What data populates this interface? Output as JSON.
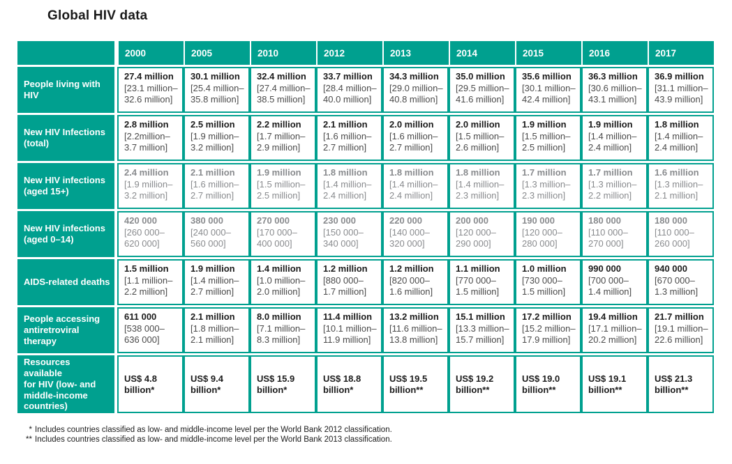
{
  "page": {
    "title": "Global HIV data"
  },
  "colors": {
    "teal": "#00a08f",
    "grey_text": "#898b8e",
    "black_text": "#1b1b1b",
    "white": "#ffffff"
  },
  "table": {
    "years": [
      "2000",
      "2005",
      "2010",
      "2012",
      "2013",
      "2014",
      "2015",
      "2016",
      "2017"
    ],
    "rows": [
      {
        "label": "People living with\nHIV",
        "text_color": "black",
        "cells": [
          {
            "value": "27.4 million",
            "range": "[23.1 million–\n32.6 million]"
          },
          {
            "value": "30.1 million",
            "range": "[25.4 million–\n35.8 million]"
          },
          {
            "value": "32.4 million",
            "range": "[27.4 million–\n38.5 million]"
          },
          {
            "value": "33.7 million",
            "range": "[28.4 million–\n40.0 million]"
          },
          {
            "value": "34.3 million",
            "range": "[29.0 million–\n40.8 million]"
          },
          {
            "value": "35.0 million",
            "range": "[29.5 million–\n41.6 million]"
          },
          {
            "value": "35.6 million",
            "range": "[30.1 million–\n42.4 million]"
          },
          {
            "value": "36.3 million",
            "range": "[30.6 million–\n43.1 million]"
          },
          {
            "value": "36.9 million",
            "range": "[31.1 million–\n43.9 million]"
          }
        ]
      },
      {
        "label": "New HIV Infections\n(total)",
        "text_color": "black",
        "cells": [
          {
            "value": "2.8 million",
            "range": "[2.2million–\n3.7 million]"
          },
          {
            "value": "2.5 million",
            "range": "[1.9 million–\n3.2 million]"
          },
          {
            "value": "2.2 million",
            "range": "[1.7 million–\n2.9 million]"
          },
          {
            "value": "2.1 million",
            "range": "[1.6 million–\n2.7 million]"
          },
          {
            "value": "2.0 million",
            "range": "[1.6 million–\n2.7 million]"
          },
          {
            "value": "2.0 million",
            "range": "[1.5 million–\n2.6 million]"
          },
          {
            "value": "1.9 million",
            "range": "[1.5 million–\n2.5 million]"
          },
          {
            "value": "1.9 million",
            "range": "[1.4 million–\n2.4 million]"
          },
          {
            "value": "1.8 million",
            "range": "[1.4 million–\n2.4 million]"
          }
        ]
      },
      {
        "label": "New HIV infections\n(aged 15+)",
        "text_color": "grey",
        "cells": [
          {
            "value": "2.4 million",
            "range": "[1.9 million–\n3.2 million]"
          },
          {
            "value": "2.1 million",
            "range": "[1.6 million–\n2.7 million]"
          },
          {
            "value": "1.9 million",
            "range": "[1.5 million–\n2.5 million]"
          },
          {
            "value": "1.8 million",
            "range": "[1.4 million–\n2.4 million]"
          },
          {
            "value": "1.8 million",
            "range": "[1.4 million–\n2.4 million]"
          },
          {
            "value": "1.8 million",
            "range": "[1.4 million–\n2.3 million]"
          },
          {
            "value": "1.7 million",
            "range": "[1.3 million–\n2.3 million]"
          },
          {
            "value": "1.7 million",
            "range": "[1.3 million–\n2.2 million]"
          },
          {
            "value": "1.6 million",
            "range": "[1.3 million–\n2.1 million]"
          }
        ]
      },
      {
        "label": "New HIV infections\n(aged 0–14)",
        "text_color": "grey",
        "cells": [
          {
            "value": "420 000",
            "range": "[260 000–\n620 000]"
          },
          {
            "value": "380 000",
            "range": "[240 000–\n560 000]"
          },
          {
            "value": "270 000",
            "range": "[170 000–\n400 000]"
          },
          {
            "value": "230 000",
            "range": "[150 000–\n340 000]"
          },
          {
            "value": "220 000",
            "range": "[140 000–\n320 000]"
          },
          {
            "value": "200 000",
            "range": "[120 000–\n290 000]"
          },
          {
            "value": "190 000",
            "range": "[120 000–\n280 000]"
          },
          {
            "value": "180 000",
            "range": "[110 000–\n270 000]"
          },
          {
            "value": "180 000",
            "range": "[110 000–\n260 000]"
          }
        ]
      },
      {
        "label": "AIDS-related deaths",
        "text_color": "black",
        "cells": [
          {
            "value": "1.5 million",
            "range": "[1.1 million–\n2.2 million]"
          },
          {
            "value": "1.9 million",
            "range": "[1.4 million–\n2.7 million]"
          },
          {
            "value": "1.4 million",
            "range": "[1.0 million–\n2.0 million]"
          },
          {
            "value": "1.2 million",
            "range": "[880 000–\n1.7 million]"
          },
          {
            "value": "1.2 million",
            "range": "[820 000–\n1.6 million]"
          },
          {
            "value": "1.1 million",
            "range": "[770 000–\n1.5 million]"
          },
          {
            "value": "1.0 million",
            "range": "[730 000–\n1.5 million]"
          },
          {
            "value": "990 000",
            "range": "[700 000–\n1.4 million]"
          },
          {
            "value": "940 000",
            "range": "[670 000–\n1.3 million]"
          }
        ]
      },
      {
        "label": "People accessing\nantiretroviral therapy",
        "text_color": "black",
        "cells": [
          {
            "value": "611 000",
            "range": "[538 000–\n636 000]"
          },
          {
            "value": "2.1 million",
            "range": "[1.8 million–\n2.1 million]"
          },
          {
            "value": "8.0 million",
            "range": "[7.1 million–\n8.3 million]"
          },
          {
            "value": "11.4 million",
            "range": "[10.1 million–\n11.9 million]"
          },
          {
            "value": "13.2 million",
            "range": "[11.6 million–\n13.8 million]"
          },
          {
            "value": "15.1 million",
            "range": "[13.3 million–\n15.7 million]"
          },
          {
            "value": "17.2 million",
            "range": "[15.2 million–\n17.9 million]"
          },
          {
            "value": "19.4 million",
            "range": "[17.1 million–\n20.2 million]"
          },
          {
            "value": "21.7 million",
            "range": "[19.1 million–\n22.6 million]"
          }
        ]
      },
      {
        "label": "Resources available\nfor HIV (low- and\nmiddle-income\ncountries)",
        "text_color": "black",
        "tall": true,
        "cells": [
          {
            "value": "US$ 4.8\nbillion*",
            "range": ""
          },
          {
            "value": "US$ 9.4\nbillion*",
            "range": ""
          },
          {
            "value": "US$ 15.9\nbillion*",
            "range": ""
          },
          {
            "value": "US$ 18.8\nbillion*",
            "range": ""
          },
          {
            "value": "US$ 19.5\nbillion**",
            "range": ""
          },
          {
            "value": "US$ 19.2\nbillion**",
            "range": ""
          },
          {
            "value": "US$ 19.0\nbillion**",
            "range": ""
          },
          {
            "value": "US$ 19.1\nbillion**",
            "range": ""
          },
          {
            "value": "US$ 21.3\nbillion**",
            "range": ""
          }
        ]
      }
    ]
  },
  "footnotes": [
    {
      "marker": "*",
      "text": "Includes countries classified as low- and middle-income level per the World Bank 2012 classification."
    },
    {
      "marker": "**",
      "text": "Includes countries classified as low- and middle-income level per the World Bank 2013 classification."
    }
  ]
}
